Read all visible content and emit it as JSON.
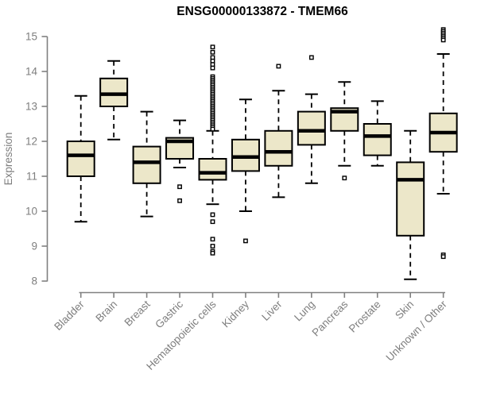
{
  "chart_data": {
    "type": "boxplot",
    "title": "ENSG00000133872 - TMEM66",
    "ylabel": "Expression",
    "xlabel": "",
    "ylim": [
      8,
      15.3
    ],
    "yticks": [
      8,
      9,
      10,
      11,
      12,
      13,
      14,
      15
    ],
    "grid": false,
    "legend": "none",
    "categories": [
      "Bladder",
      "Brain",
      "Breast",
      "Gastric",
      "Hematopoietic cells",
      "Kidney",
      "Liver",
      "Lung",
      "Pancreas",
      "Prostate",
      "Skin",
      "Unknown / Other"
    ],
    "boxes": [
      {
        "category": "Bladder",
        "whisker_low": 9.7,
        "q1": 11.0,
        "median": 11.6,
        "q3": 12.0,
        "whisker_high": 13.3,
        "outliers": []
      },
      {
        "category": "Brain",
        "whisker_low": 12.05,
        "q1": 13.0,
        "median": 13.35,
        "q3": 13.8,
        "whisker_high": 14.3,
        "outliers": []
      },
      {
        "category": "Breast",
        "whisker_low": 9.85,
        "q1": 10.8,
        "median": 11.4,
        "q3": 11.85,
        "whisker_high": 12.85,
        "outliers": []
      },
      {
        "category": "Gastric",
        "whisker_low": 11.25,
        "q1": 11.5,
        "median": 12.0,
        "q3": 12.1,
        "whisker_high": 12.6,
        "outliers": [
          10.7,
          10.3
        ]
      },
      {
        "category": "Hematopoietic cells",
        "whisker_low": 10.2,
        "q1": 10.9,
        "median": 11.1,
        "q3": 11.5,
        "whisker_high": 12.3,
        "outliers": [
          14.7,
          14.55,
          14.4,
          14.3,
          14.2,
          14.1,
          13.85,
          13.8,
          13.75,
          13.7,
          13.65,
          13.6,
          13.55,
          13.5,
          13.45,
          13.4,
          13.35,
          13.3,
          13.25,
          13.2,
          13.15,
          13.1,
          13.05,
          13.0,
          12.95,
          12.9,
          12.85,
          12.8,
          12.75,
          12.7,
          12.65,
          12.6,
          12.55,
          12.5,
          12.45,
          12.4,
          12.35,
          9.9,
          9.7,
          9.2,
          9.0,
          8.85,
          8.8
        ]
      },
      {
        "category": "Kidney",
        "whisker_low": 10.0,
        "q1": 11.15,
        "median": 11.55,
        "q3": 12.05,
        "whisker_high": 13.2,
        "outliers": [
          9.15
        ]
      },
      {
        "category": "Liver",
        "whisker_low": 10.4,
        "q1": 11.3,
        "median": 11.7,
        "q3": 12.3,
        "whisker_high": 13.45,
        "outliers": [
          14.15
        ]
      },
      {
        "category": "Lung",
        "whisker_low": 10.8,
        "q1": 11.9,
        "median": 12.3,
        "q3": 12.85,
        "whisker_high": 13.35,
        "outliers": [
          14.4
        ]
      },
      {
        "category": "Pancreas",
        "whisker_low": 11.3,
        "q1": 12.3,
        "median": 12.85,
        "q3": 12.95,
        "whisker_high": 13.7,
        "outliers": [
          10.95
        ]
      },
      {
        "category": "Prostate",
        "whisker_low": 11.3,
        "q1": 11.6,
        "median": 12.15,
        "q3": 12.5,
        "whisker_high": 13.15,
        "outliers": []
      },
      {
        "category": "Skin",
        "whisker_low": 8.05,
        "q1": 9.3,
        "median": 10.9,
        "q3": 11.4,
        "whisker_high": 12.3,
        "outliers": []
      },
      {
        "category": "Unknown / Other",
        "whisker_low": 10.5,
        "q1": 11.7,
        "median": 12.25,
        "q3": 12.8,
        "whisker_high": 14.5,
        "outliers": [
          15.2,
          15.15,
          15.1,
          15.05,
          15.0,
          14.95,
          14.9,
          8.75,
          8.7
        ]
      }
    ],
    "colors": {
      "box_fill": "#ece7c9",
      "box_stroke": "#000000",
      "median_color": "#000000",
      "whisker_color": "#000000",
      "outlier_color": "#000000",
      "axis_line": "#808080",
      "axis_text": "#7e7e7e",
      "title_color": "#000000",
      "background": "#ffffff"
    }
  }
}
